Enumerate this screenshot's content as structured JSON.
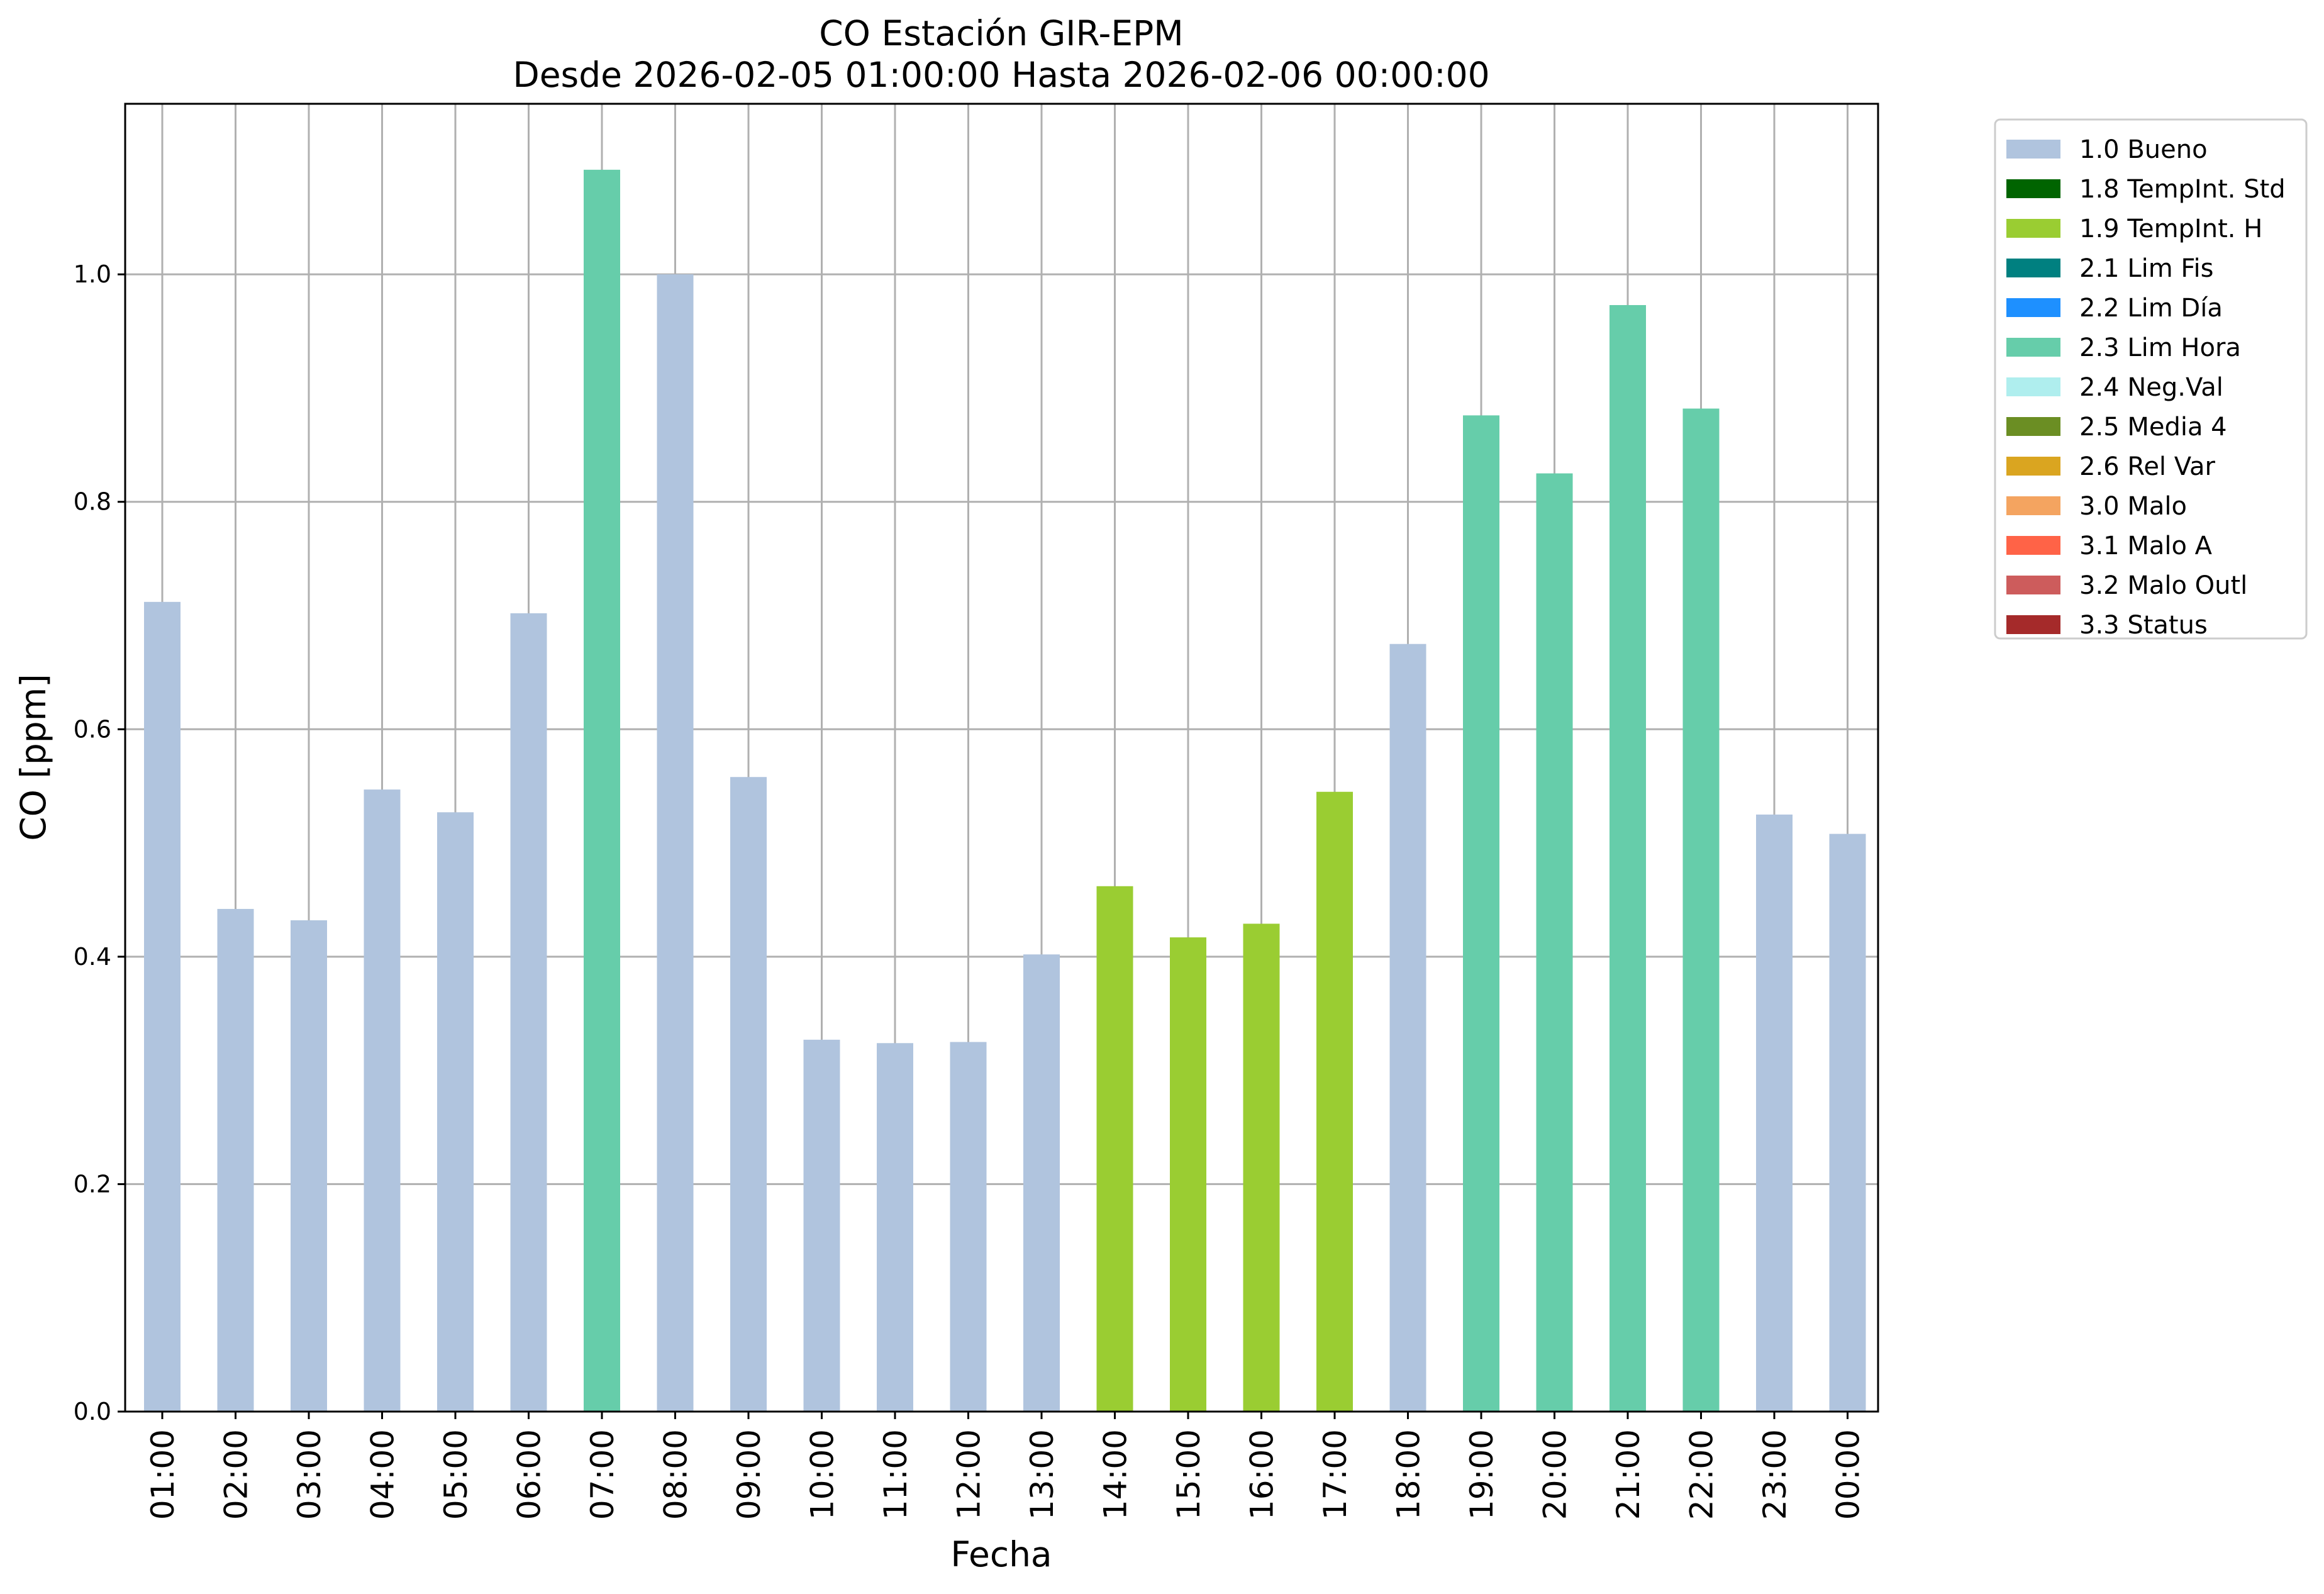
{
  "chart_data": {
    "type": "bar",
    "title": "CO Estación GIR-EPM",
    "subtitle": "Desde 2026-02-05 01:00:00 Hasta 2026-02-06 00:00:00",
    "xlabel": "Fecha",
    "ylabel": "CO [ppm]",
    "ylim": [
      0,
      1.15
    ],
    "yticks": [
      "0.0",
      "0.2",
      "0.4",
      "0.6",
      "0.8",
      "1.0"
    ],
    "grid": true,
    "legend_position": "outside-top-right",
    "categories": [
      "01:00",
      "02:00",
      "03:00",
      "04:00",
      "05:00",
      "06:00",
      "07:00",
      "08:00",
      "09:00",
      "10:00",
      "11:00",
      "12:00",
      "13:00",
      "14:00",
      "15:00",
      "16:00",
      "17:00",
      "18:00",
      "19:00",
      "20:00",
      "21:00",
      "22:00",
      "23:00",
      "00:00"
    ],
    "values": [
      0.712,
      0.442,
      0.432,
      0.547,
      0.527,
      0.702,
      1.092,
      1.0,
      0.558,
      0.327,
      0.324,
      0.325,
      0.402,
      0.462,
      0.417,
      0.429,
      0.545,
      0.675,
      0.876,
      0.825,
      0.973,
      0.882,
      0.525,
      0.508
    ],
    "flags": [
      "1.0 Bueno",
      "1.0 Bueno",
      "1.0 Bueno",
      "1.0 Bueno",
      "1.0 Bueno",
      "1.0 Bueno",
      "2.3 Lim Hora",
      "1.0 Bueno",
      "1.0 Bueno",
      "1.0 Bueno",
      "1.0 Bueno",
      "1.0 Bueno",
      "1.0 Bueno",
      "1.9 TempInt. H",
      "1.9 TempInt. H",
      "1.9 TempInt. H",
      "1.9 TempInt. H",
      "1.0 Bueno",
      "2.3 Lim Hora",
      "2.3 Lim Hora",
      "2.3 Lim Hora",
      "2.3 Lim Hora",
      "1.0 Bueno",
      "1.0 Bueno"
    ],
    "legend": [
      {
        "label": "1.0 Bueno",
        "color": "#b0c4de"
      },
      {
        "label": "1.8 TempInt. Std",
        "color": "#006400"
      },
      {
        "label": "1.9 TempInt. H",
        "color": "#9acd32"
      },
      {
        "label": "2.1 Lim Fis",
        "color": "#008080"
      },
      {
        "label": "2.2 Lim Día",
        "color": "#1e90ff"
      },
      {
        "label": "2.3 Lim Hora",
        "color": "#66cdaa"
      },
      {
        "label": "2.4 Neg.Val",
        "color": "#afeeee"
      },
      {
        "label": "2.5 Media 4",
        "color": "#6b8e23"
      },
      {
        "label": "2.6 Rel Var",
        "color": "#daa520"
      },
      {
        "label": "3.0 Malo",
        "color": "#f4a460"
      },
      {
        "label": "3.1 Malo A",
        "color": "#ff6347"
      },
      {
        "label": "3.2 Malo Outl",
        "color": "#cd5c5c"
      },
      {
        "label": "3.3 Status",
        "color": "#a52a2a"
      }
    ]
  }
}
